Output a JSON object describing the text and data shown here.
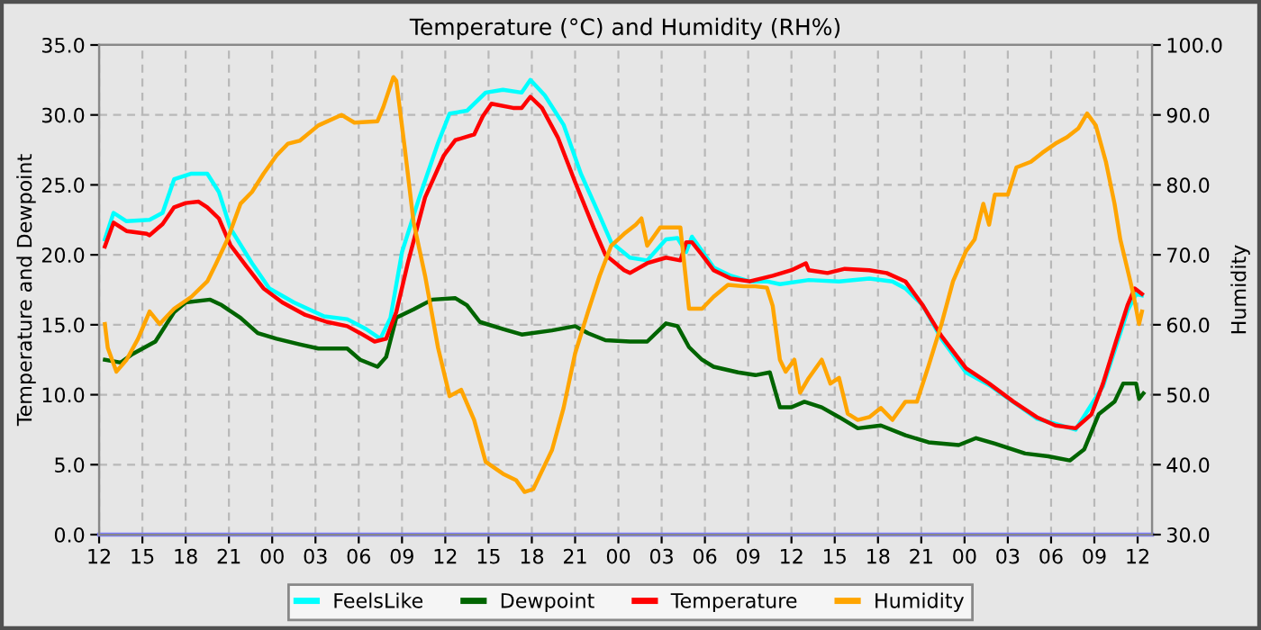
{
  "chart_data": {
    "type": "line",
    "title": "Temperature (°C) and Humidity (RH%)",
    "ylabel": "Temperature and Dewpoint",
    "y2label": "Humidity",
    "xlim": [
      "2000-01-01T12:00",
      "2000-01-04T13:00"
    ],
    "xticks": [
      {
        "value": "2000-01-01T12:00",
        "label": "12"
      },
      {
        "value": "2000-01-01T15:00",
        "label": "15"
      },
      {
        "value": "2000-01-01T18:00",
        "label": "18"
      },
      {
        "value": "2000-01-01T21:00",
        "label": "21"
      },
      {
        "value": "2000-01-02T00:00",
        "label": "00"
      },
      {
        "value": "2000-01-02T03:00",
        "label": "03"
      },
      {
        "value": "2000-01-02T06:00",
        "label": "06"
      },
      {
        "value": "2000-01-02T09:00",
        "label": "09"
      },
      {
        "value": "2000-01-02T12:00",
        "label": "12"
      },
      {
        "value": "2000-01-02T15:00",
        "label": "15"
      },
      {
        "value": "2000-01-02T18:00",
        "label": "18"
      },
      {
        "value": "2000-01-02T21:00",
        "label": "21"
      },
      {
        "value": "2000-01-03T00:00",
        "label": "00"
      },
      {
        "value": "2000-01-03T03:00",
        "label": "03"
      },
      {
        "value": "2000-01-03T06:00",
        "label": "06"
      },
      {
        "value": "2000-01-03T09:00",
        "label": "09"
      },
      {
        "value": "2000-01-03T12:00",
        "label": "12"
      },
      {
        "value": "2000-01-03T15:00",
        "label": "15"
      },
      {
        "value": "2000-01-03T18:00",
        "label": "18"
      },
      {
        "value": "2000-01-03T21:00",
        "label": "21"
      },
      {
        "value": "2000-01-04T00:00",
        "label": "00"
      },
      {
        "value": "2000-01-04T03:00",
        "label": "03"
      },
      {
        "value": "2000-01-04T06:00",
        "label": "06"
      },
      {
        "value": "2000-01-04T09:00",
        "label": "09"
      },
      {
        "value": "2000-01-04T12:00",
        "label": "12"
      }
    ],
    "ylim": [
      0,
      35
    ],
    "yticks": [
      {
        "value": 0,
        "label": "0.0"
      },
      {
        "value": 5,
        "label": "5.0"
      },
      {
        "value": 10,
        "label": "10.0"
      },
      {
        "value": 15,
        "label": "15.0"
      },
      {
        "value": 20,
        "label": "20.0"
      },
      {
        "value": 25,
        "label": "25.0"
      },
      {
        "value": 30,
        "label": "30.0"
      },
      {
        "value": 35,
        "label": "35.0"
      }
    ],
    "y2lim": [
      30,
      100
    ],
    "y2ticks": [
      {
        "value": 30,
        "label": "30.0"
      },
      {
        "value": 40,
        "label": "40.0"
      },
      {
        "value": 50,
        "label": "50.0"
      },
      {
        "value": 60,
        "label": "60.0"
      },
      {
        "value": 70,
        "label": "70.0"
      },
      {
        "value": 80,
        "label": "80.0"
      },
      {
        "value": 90,
        "label": "90.0"
      },
      {
        "value": 100,
        "label": "100.0"
      }
    ],
    "grid": true,
    "legend": "bottom",
    "marker": "none",
    "line_style": "solid",
    "series": [
      {
        "name": "FeelsLike",
        "color": "#00ffff",
        "x": [
          "2000-01-01T12:24",
          "2000-01-01T13:00",
          "2000-01-01T13:54",
          "2000-01-01T15:30",
          "2000-01-01T16:24",
          "2000-01-01T17:12",
          "2000-01-01T18:24",
          "2000-01-01T19:30",
          "2000-01-01T20:18",
          "2000-01-01T21:06",
          "2000-01-01T22:36",
          "2000-01-01T23:48",
          "2000-01-02T01:30",
          "2000-01-02T03:36",
          "2000-01-02T05:12",
          "2000-01-02T06:30",
          "2000-01-02T07:30",
          "2000-01-02T08:12",
          "2000-01-02T09:00",
          "2000-01-02T10:12",
          "2000-01-02T11:30",
          "2000-01-02T12:18",
          "2000-01-02T13:30",
          "2000-01-02T14:48",
          "2000-01-02T16:00",
          "2000-01-02T17:18",
          "2000-01-02T17:54",
          "2000-01-02T18:54",
          "2000-01-02T20:12",
          "2000-01-02T21:24",
          "2000-01-02T22:42",
          "2000-01-02T23:30",
          "2000-01-03T00:48",
          "2000-01-03T02:00",
          "2000-01-03T03:18",
          "2000-01-03T04:06",
          "2000-01-03T04:42",
          "2000-01-03T05:06",
          "2000-01-03T06:36",
          "2000-01-03T07:48",
          "2000-01-03T09:06",
          "2000-01-03T10:18",
          "2000-01-03T11:12",
          "2000-01-03T13:12",
          "2000-01-03T15:18",
          "2000-01-03T17:24",
          "2000-01-03T19:00",
          "2000-01-03T19:54",
          "2000-01-03T21:06",
          "2000-01-03T22:24",
          "2000-01-04T00:06",
          "2000-01-04T01:42",
          "2000-01-04T05:00",
          "2000-01-04T07:42",
          "2000-01-04T09:36",
          "2000-01-04T11:18",
          "2000-01-04T11:54",
          "2000-01-04T12:18"
        ],
        "values": [
          21.1,
          23.0,
          22.4,
          22.5,
          23.0,
          25.4,
          25.8,
          25.8,
          24.5,
          21.9,
          19.4,
          17.6,
          16.6,
          15.6,
          15.4,
          14.7,
          14.0,
          15.5,
          20.2,
          24.1,
          28.0,
          30.1,
          30.3,
          31.6,
          31.8,
          31.6,
          32.5,
          31.4,
          29.3,
          25.8,
          22.8,
          20.9,
          19.8,
          19.6,
          21.1,
          21.2,
          20.2,
          21.3,
          19.1,
          18.5,
          18.1,
          18.1,
          17.9,
          18.2,
          18.1,
          18.3,
          18.1,
          17.6,
          16.4,
          14.0,
          11.6,
          10.7,
          8.3,
          7.5,
          10.6,
          16.0,
          17.2,
          17.1
        ]
      },
      {
        "name": "Dewpoint",
        "color": "#006400",
        "x": [
          "2000-01-01T12:24",
          "2000-01-01T13:30",
          "2000-01-01T14:18",
          "2000-01-01T15:54",
          "2000-01-01T17:12",
          "2000-01-01T18:00",
          "2000-01-01T19:42",
          "2000-01-01T20:30",
          "2000-01-01T21:48",
          "2000-01-01T23:00",
          "2000-01-02T00:18",
          "2000-01-02T01:54",
          "2000-01-02T03:12",
          "2000-01-02T05:12",
          "2000-01-02T06:06",
          "2000-01-02T07:18",
          "2000-01-02T07:54",
          "2000-01-02T08:36",
          "2000-01-02T09:48",
          "2000-01-02T11:06",
          "2000-01-02T12:42",
          "2000-01-02T13:30",
          "2000-01-02T14:24",
          "2000-01-02T16:00",
          "2000-01-02T17:18",
          "2000-01-02T19:24",
          "2000-01-02T21:00",
          "2000-01-02T21:54",
          "2000-01-02T23:06",
          "2000-01-03T00:48",
          "2000-01-03T02:00",
          "2000-01-03T03:18",
          "2000-01-03T04:06",
          "2000-01-03T04:54",
          "2000-01-03T05:48",
          "2000-01-03T06:36",
          "2000-01-03T08:18",
          "2000-01-03T09:30",
          "2000-01-03T10:30",
          "2000-01-03T11:12",
          "2000-01-03T12:00",
          "2000-01-03T12:54",
          "2000-01-03T14:06",
          "2000-01-03T15:18",
          "2000-01-03T16:36",
          "2000-01-03T18:12",
          "2000-01-03T19:54",
          "2000-01-03T21:30",
          "2000-01-03T23:36",
          "2000-01-04T00:48",
          "2000-01-04T02:06",
          "2000-01-04T04:12",
          "2000-01-04T05:48",
          "2000-01-04T07:18",
          "2000-01-04T08:18",
          "2000-01-04T09:18",
          "2000-01-04T10:24",
          "2000-01-04T11:00",
          "2000-01-04T11:54",
          "2000-01-04T12:06",
          "2000-01-04T12:24"
        ],
        "values": [
          12.5,
          12.3,
          12.9,
          13.8,
          15.9,
          16.6,
          16.8,
          16.4,
          15.5,
          14.4,
          14.0,
          13.6,
          13.3,
          13.3,
          12.5,
          12.0,
          12.7,
          15.5,
          16.1,
          16.8,
          16.9,
          16.4,
          15.2,
          14.7,
          14.3,
          14.6,
          14.9,
          14.4,
          13.9,
          13.8,
          13.8,
          15.1,
          14.9,
          13.4,
          12.5,
          12.0,
          11.6,
          11.4,
          11.6,
          9.1,
          9.1,
          9.5,
          9.1,
          8.4,
          7.6,
          7.8,
          7.1,
          6.6,
          6.4,
          6.9,
          6.5,
          5.8,
          5.6,
          5.3,
          6.1,
          8.6,
          9.5,
          10.8,
          10.8,
          9.7,
          10.1
        ]
      },
      {
        "name": "Temperature",
        "color": "#ff0000",
        "x": [
          "2000-01-01T12:24",
          "2000-01-01T13:00",
          "2000-01-01T13:54",
          "2000-01-01T15:18",
          "2000-01-01T15:30",
          "2000-01-01T16:24",
          "2000-01-01T17:12",
          "2000-01-01T18:00",
          "2000-01-01T18:54",
          "2000-01-01T19:30",
          "2000-01-01T20:18",
          "2000-01-01T21:06",
          "2000-01-01T22:12",
          "2000-01-01T23:24",
          "2000-01-02T00:42",
          "2000-01-02T02:18",
          "2000-01-02T03:48",
          "2000-01-02T05:12",
          "2000-01-02T06:06",
          "2000-01-02T07:06",
          "2000-01-02T07:54",
          "2000-01-02T08:36",
          "2000-01-02T09:24",
          "2000-01-02T10:36",
          "2000-01-02T11:54",
          "2000-01-02T12:42",
          "2000-01-02T14:00",
          "2000-01-02T14:36",
          "2000-01-02T15:12",
          "2000-01-02T16:42",
          "2000-01-02T17:18",
          "2000-01-02T17:54",
          "2000-01-02T18:42",
          "2000-01-02T19:48",
          "2000-01-02T21:00",
          "2000-01-02T22:18",
          "2000-01-02T23:06",
          "2000-01-03T00:24",
          "2000-01-03T00:48",
          "2000-01-03T02:00",
          "2000-01-03T03:18",
          "2000-01-03T04:18",
          "2000-01-03T04:42",
          "2000-01-03T05:06",
          "2000-01-03T05:48",
          "2000-01-03T06:36",
          "2000-01-03T07:48",
          "2000-01-03T09:06",
          "2000-01-03T10:42",
          "2000-01-03T12:00",
          "2000-01-03T13:00",
          "2000-01-03T13:12",
          "2000-01-03T14:30",
          "2000-01-03T15:42",
          "2000-01-03T17:24",
          "2000-01-03T18:36",
          "2000-01-03T19:54",
          "2000-01-03T21:06",
          "2000-01-03T22:24",
          "2000-01-04T00:06",
          "2000-01-04T01:42",
          "2000-01-04T03:24",
          "2000-01-04T05:00",
          "2000-01-04T06:18",
          "2000-01-04T07:42",
          "2000-01-04T08:48",
          "2000-01-04T09:36",
          "2000-01-04T10:30",
          "2000-01-04T11:18",
          "2000-01-04T11:48",
          "2000-01-04T12:18"
        ],
        "values": [
          20.6,
          22.3,
          21.7,
          21.5,
          21.4,
          22.2,
          23.4,
          23.7,
          23.8,
          23.4,
          22.6,
          20.7,
          19.2,
          17.6,
          16.6,
          15.7,
          15.2,
          14.9,
          14.4,
          13.8,
          14.0,
          15.9,
          19.4,
          24.1,
          27.1,
          28.2,
          28.6,
          29.9,
          30.8,
          30.5,
          30.5,
          31.3,
          30.5,
          28.4,
          25.2,
          21.9,
          20.0,
          18.9,
          18.7,
          19.4,
          19.8,
          19.6,
          20.9,
          20.9,
          20.0,
          18.9,
          18.3,
          18.1,
          18.5,
          18.9,
          19.4,
          18.9,
          18.7,
          19.0,
          18.9,
          18.7,
          18.1,
          16.4,
          14.2,
          11.9,
          10.8,
          9.5,
          8.4,
          7.8,
          7.6,
          8.6,
          10.8,
          13.8,
          16.4,
          17.6,
          17.2
        ]
      },
      {
        "name": "Humidity",
        "color": "#ffa500",
        "axis": "y2",
        "x": [
          "2000-01-01T12:24",
          "2000-01-01T12:36",
          "2000-01-01T13:12",
          "2000-01-01T13:54",
          "2000-01-01T14:42",
          "2000-01-01T15:30",
          "2000-01-01T16:12",
          "2000-01-01T17:12",
          "2000-01-01T18:24",
          "2000-01-01T19:30",
          "2000-01-01T20:06",
          "2000-01-01T20:54",
          "2000-01-01T21:48",
          "2000-01-01T22:36",
          "2000-01-01T23:24",
          "2000-01-02T00:18",
          "2000-01-02T01:06",
          "2000-01-02T01:54",
          "2000-01-02T03:12",
          "2000-01-02T04:48",
          "2000-01-02T05:42",
          "2000-01-02T07:18",
          "2000-01-02T07:42",
          "2000-01-02T08:24",
          "2000-01-02T08:36",
          "2000-01-02T09:12",
          "2000-01-02T09:48",
          "2000-01-02T10:36",
          "2000-01-02T11:30",
          "2000-01-02T12:18",
          "2000-01-02T13:06",
          "2000-01-02T14:00",
          "2000-01-02T14:48",
          "2000-01-02T16:00",
          "2000-01-02T16:54",
          "2000-01-02T17:30",
          "2000-01-02T18:06",
          "2000-01-02T19:24",
          "2000-01-02T20:12",
          "2000-01-02T21:00",
          "2000-01-02T21:54",
          "2000-01-02T22:42",
          "2000-01-02T23:30",
          "2000-01-03T00:24",
          "2000-01-03T01:12",
          "2000-01-03T01:36",
          "2000-01-03T02:00",
          "2000-01-03T02:54",
          "2000-01-03T04:18",
          "2000-01-03T04:54",
          "2000-01-03T05:48",
          "2000-01-03T06:36",
          "2000-01-03T07:36",
          "2000-01-03T08:42",
          "2000-01-03T09:30",
          "2000-01-03T10:18",
          "2000-01-03T10:42",
          "2000-01-03T11:12",
          "2000-01-03T11:36",
          "2000-01-03T12:12",
          "2000-01-03T12:36",
          "2000-01-03T13:12",
          "2000-01-03T14:06",
          "2000-01-03T14:42",
          "2000-01-03T15:18",
          "2000-01-03T15:54",
          "2000-01-03T16:36",
          "2000-01-03T17:24",
          "2000-01-03T18:12",
          "2000-01-03T19:00",
          "2000-01-03T19:54",
          "2000-01-03T20:42",
          "2000-01-03T21:30",
          "2000-01-03T22:24",
          "2000-01-03T23:12",
          "2000-01-04T00:06",
          "2000-01-04T00:42",
          "2000-01-04T01:18",
          "2000-01-04T01:42",
          "2000-01-04T02:06",
          "2000-01-04T03:00",
          "2000-01-04T03:36",
          "2000-01-04T04:36",
          "2000-01-04T05:24",
          "2000-01-04T06:18",
          "2000-01-04T07:06",
          "2000-01-04T07:54",
          "2000-01-04T08:30",
          "2000-01-04T09:06",
          "2000-01-04T09:48",
          "2000-01-04T10:24",
          "2000-01-04T10:48",
          "2000-01-04T11:18",
          "2000-01-04T11:42",
          "2000-01-04T12:06",
          "2000-01-04T12:18"
        ],
        "values": [
          60.1,
          56.7,
          53.3,
          55.0,
          58.0,
          61.9,
          60.1,
          62.3,
          64.0,
          66.2,
          68.7,
          72.2,
          77.3,
          79.0,
          81.6,
          84.2,
          85.9,
          86.3,
          88.5,
          90.0,
          88.9,
          89.1,
          91.1,
          95.4,
          94.9,
          85.1,
          74.7,
          67.0,
          56.7,
          49.8,
          50.7,
          46.4,
          40.4,
          38.7,
          37.8,
          36.1,
          36.5,
          42.1,
          48.1,
          55.9,
          61.9,
          67.0,
          71.3,
          73.0,
          74.3,
          75.2,
          71.3,
          73.9,
          73.9,
          62.3,
          62.3,
          64.0,
          65.7,
          65.5,
          65.5,
          65.3,
          62.7,
          55.0,
          53.3,
          55.0,
          50.3,
          52.4,
          55.0,
          51.6,
          52.4,
          47.3,
          46.4,
          46.8,
          48.1,
          46.4,
          49.0,
          49.0,
          54.1,
          60.1,
          66.2,
          70.5,
          72.2,
          77.3,
          74.3,
          78.6,
          78.6,
          82.5,
          83.3,
          84.6,
          85.9,
          86.8,
          88.1,
          90.2,
          88.5,
          83.3,
          77.3,
          72.2,
          67.9,
          64.4,
          60.1,
          61.9
        ]
      },
      {
        "color": "#7b7bff",
        "x": [
          "2000-01-01T12:00",
          "2000-01-04T13:00"
        ],
        "values": [
          0,
          0
        ]
      }
    ]
  }
}
